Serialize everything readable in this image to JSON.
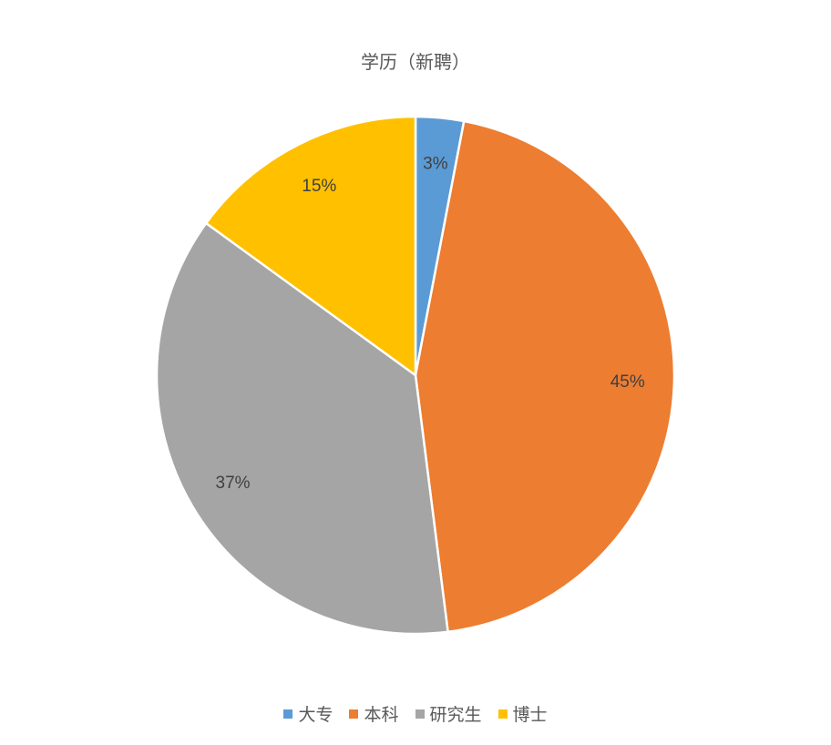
{
  "chart_data": {
    "type": "pie",
    "title": "学历（新聘）",
    "categories": [
      "大专",
      "本科",
      "研究生",
      "博士"
    ],
    "values": [
      3,
      45,
      37,
      15
    ],
    "labels": [
      "3%",
      "45%",
      "37%",
      "15%"
    ],
    "colors": [
      "#5B9BD5",
      "#ED7D31",
      "#A5A5A5",
      "#FFC000"
    ],
    "start_angle_deg": 0,
    "direction": "clockwise",
    "legend_position": "bottom"
  }
}
